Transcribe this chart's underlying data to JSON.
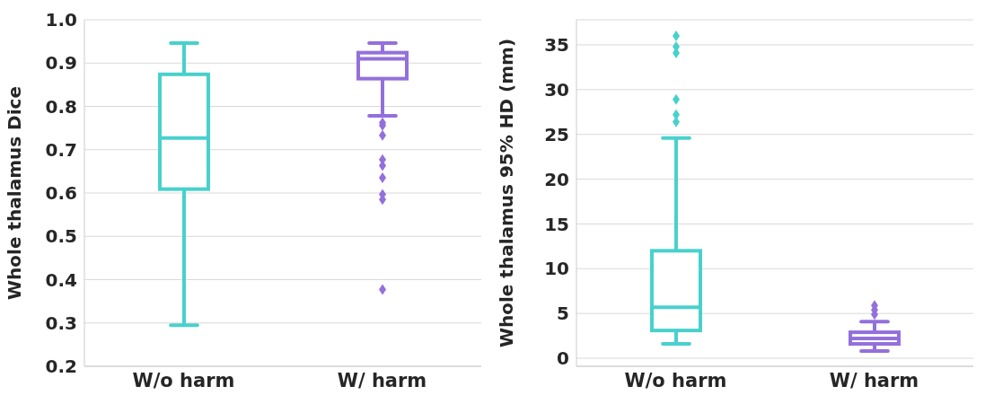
{
  "chart_data": [
    {
      "type": "box",
      "ylabel": "Whole thalamus Dice",
      "categories": [
        "W/o harm",
        "W/ harm"
      ],
      "colors": [
        "#48d1cc",
        "#9370db"
      ],
      "grid": "y",
      "ylim": [
        0.2,
        1.0
      ],
      "yticks": [
        0.2,
        0.3,
        0.4,
        0.5,
        0.6,
        0.7,
        0.8,
        0.9,
        {
          "value": 1.0,
          "label": "1.0"
        }
      ],
      "boxes": [
        {
          "low": 0.295,
          "q1": 0.609,
          "median": 0.727,
          "q3": 0.874,
          "high": 0.946
        },
        {
          "low": 0.778,
          "q1": 0.864,
          "median": 0.91,
          "q3": 0.924,
          "high": 0.946,
          "outliers": [
            0.762,
            0.756,
            0.733,
            0.677,
            0.663,
            0.635,
            0.597,
            0.585,
            0.377
          ]
        }
      ]
    },
    {
      "type": "box",
      "ylabel": "Whole thalamus 95% HD (mm)",
      "categories": [
        "W/o harm",
        "W/ harm"
      ],
      "colors": [
        "#48d1cc",
        "#9370db"
      ],
      "grid": "y",
      "ylim": [
        -0.9,
        37.8
      ],
      "yticks": [
        0,
        5,
        10,
        15,
        20,
        25,
        30,
        35
      ],
      "boxes": [
        {
          "low": 1.6,
          "q1": 3.1,
          "median": 5.7,
          "q3": 12.0,
          "high": 24.6,
          "outliers": [
            36.0,
            34.8,
            34.1,
            28.9,
            27.2,
            26.4
          ]
        },
        {
          "low": 0.8,
          "q1": 1.6,
          "median": 2.2,
          "q3": 2.9,
          "high": 4.1,
          "outliers": [
            5.9,
            5.4,
            4.9
          ]
        }
      ]
    }
  ]
}
